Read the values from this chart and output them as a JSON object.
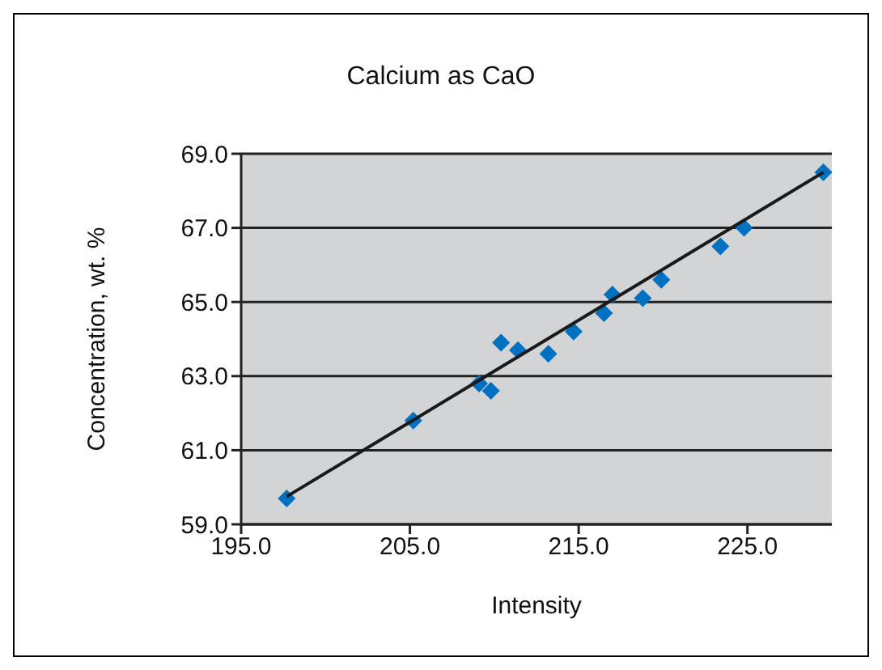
{
  "chart_data": {
    "type": "scatter",
    "title": "Calcium as CaO",
    "xlabel": "Intensity",
    "ylabel": "Concentration, wt. %",
    "xlim": [
      195,
      230
    ],
    "ylim": [
      59,
      69
    ],
    "xticks": [
      {
        "value": 195,
        "label": "195.0"
      },
      {
        "value": 205,
        "label": "205.0"
      },
      {
        "value": 215,
        "label": "215.0"
      },
      {
        "value": 225,
        "label": "225.0"
      }
    ],
    "yticks": [
      {
        "value": 59,
        "label": "59.0"
      },
      {
        "value": 61,
        "label": "61.0"
      },
      {
        "value": 63,
        "label": "63.0"
      },
      {
        "value": 65,
        "label": "65.0"
      },
      {
        "value": 67,
        "label": "67.0"
      },
      {
        "value": 69,
        "label": "69.0"
      }
    ],
    "grid": "y",
    "legend": false,
    "series": [
      {
        "marker": "diamond",
        "color": "#0070c0",
        "x": [
          197.7,
          205.2,
          209.1,
          209.8,
          210.4,
          211.4,
          213.2,
          214.7,
          216.5,
          217.0,
          218.8,
          219.9,
          223.4,
          224.8,
          229.5
        ],
        "values": [
          59.7,
          61.8,
          62.8,
          62.6,
          63.9,
          63.7,
          63.6,
          64.2,
          64.7,
          65.2,
          65.1,
          65.6,
          66.5,
          67.0,
          68.5
        ]
      },
      {
        "type": "line",
        "marker": "none",
        "color": "#1a1a1a",
        "x": [
          197.7,
          229.5
        ],
        "values": [
          59.75,
          68.5
        ]
      }
    ]
  }
}
